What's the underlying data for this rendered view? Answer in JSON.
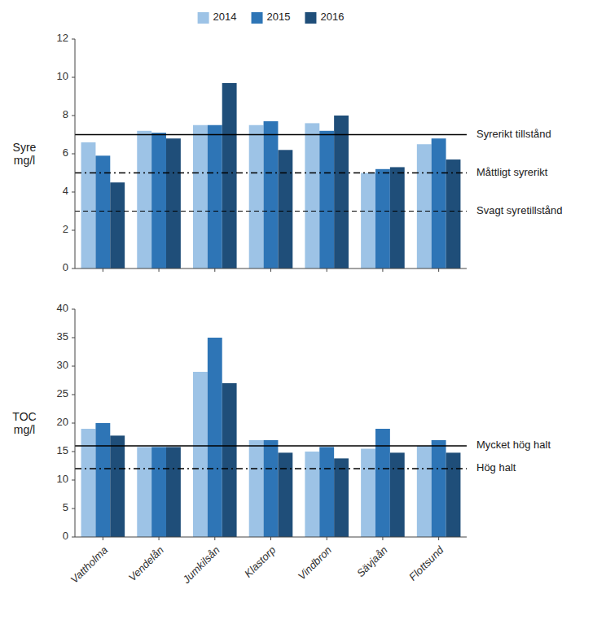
{
  "chart_data": [
    {
      "type": "bar",
      "categories": [
        "Vattholma",
        "Vendelån",
        "Jumkilsån",
        "Klastorp",
        "Vindbron",
        "Sävjaån",
        "Flottsund"
      ],
      "series": [
        {
          "name": "2014",
          "color": "#9DC3E6",
          "values": [
            6.6,
            7.2,
            7.5,
            7.5,
            7.6,
            5.0,
            6.5
          ]
        },
        {
          "name": "2015",
          "color": "#2E75B6",
          "values": [
            5.9,
            7.1,
            7.5,
            7.7,
            7.2,
            5.2,
            6.8
          ]
        },
        {
          "name": "2016",
          "color": "#1F4E79",
          "values": [
            4.5,
            6.8,
            9.7,
            6.2,
            8.0,
            5.3,
            5.7
          ]
        }
      ],
      "y_label": "Syre\nmg/l",
      "ylim": [
        0,
        12
      ],
      "yticks": [
        0,
        2,
        4,
        6,
        8,
        10,
        12
      ],
      "annotations": [
        {
          "text": "Syrerikt tillstånd",
          "y": 7.0,
          "line_style": "solid"
        },
        {
          "text": "Måttligt syrerikt",
          "y": 5.0,
          "line_style": "dashdot"
        },
        {
          "text": "Svagt syretillstånd",
          "y": 3.0,
          "line_style": "dashed"
        }
      ],
      "grid": false,
      "legend": "top",
      "tick_labels": "y"
    },
    {
      "type": "bar",
      "categories": [
        "Vattholma",
        "Vendelån",
        "Jumkilsån",
        "Klastorp",
        "Vindbron",
        "Sävjaån",
        "Flottsund"
      ],
      "series": [
        {
          "name": "2014",
          "color": "#9DC3E6",
          "values": [
            19.0,
            15.8,
            29.0,
            17.0,
            15.0,
            15.5,
            16.0
          ]
        },
        {
          "name": "2015",
          "color": "#2E75B6",
          "values": [
            20.0,
            15.8,
            35.0,
            17.0,
            15.8,
            19.0,
            17.0
          ]
        },
        {
          "name": "2016",
          "color": "#1F4E79",
          "values": [
            17.8,
            15.8,
            27.0,
            14.8,
            13.8,
            14.8,
            14.8
          ]
        }
      ],
      "y_label": "TOC\nmg/l",
      "ylim": [
        0,
        40
      ],
      "yticks": [
        0,
        5,
        10,
        15,
        20,
        25,
        30,
        35,
        40
      ],
      "annotations": [
        {
          "text": "Mycket hög halt",
          "y": 16.0,
          "line_style": "solid"
        },
        {
          "text": "Hög halt",
          "y": 12.0,
          "line_style": "dashdot"
        }
      ],
      "grid": false,
      "legend": false
    }
  ]
}
